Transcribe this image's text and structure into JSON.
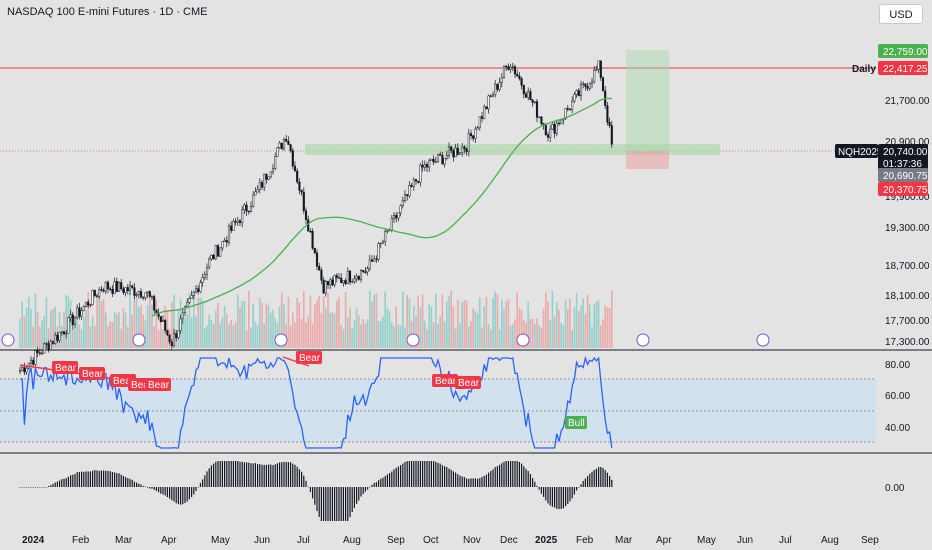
{
  "header": {
    "title": "NASDAQ 100 E-mini Futures · 1D · CME",
    "currency": "USD"
  },
  "price_axis": {
    "labels": [
      "21,700.00",
      "19,300.00",
      "18,700.00",
      "18,100.00",
      "17,700.00",
      "17,300.00"
    ],
    "partial_labels": [
      "20,900.00",
      "19,900.00"
    ],
    "tags": {
      "target": "22,759.00",
      "daily_level": "22,417.25",
      "symbol": "NQH2025",
      "last_price": "20,740.00",
      "countdown": "01:37:36",
      "ma_value": "20,690.75",
      "stop": "20,370.75"
    },
    "daily_label": "Daily"
  },
  "rsi": {
    "axis_labels": [
      "80.00",
      "60.00",
      "40.00"
    ],
    "signals": [
      "Bear",
      "Bear",
      "Bear",
      "Bear",
      "Bear",
      "Bear",
      "Bear",
      "Bear",
      "Bull"
    ]
  },
  "macd": {
    "axis_label": "0.00"
  },
  "time_axis": [
    "2024",
    "Feb",
    "Mar",
    "Apr",
    "May",
    "Jun",
    "Jul",
    "Aug",
    "Sep",
    "Oct",
    "Nov",
    "Dec",
    "2025",
    "Feb",
    "Mar",
    "Apr",
    "May",
    "Jun",
    "Jul",
    "Aug",
    "Sep"
  ],
  "colors": {
    "up": "#131722",
    "down": "#131722",
    "ma": "#4caf50",
    "rsi": "#2962ff",
    "bear": "#f23645",
    "bull": "#4caf50",
    "level": "#f23645"
  },
  "chart_data": {
    "type": "candlestick",
    "title": "NASDAQ 100 E-mini Futures · 1D · CME",
    "symbol": "NQH2025",
    "last": 20740.0,
    "levels": {
      "target": 22759.0,
      "daily": 22417.25,
      "ma": 20690.75,
      "stop": 20370.75
    },
    "yrange": [
      17200,
      23200
    ],
    "anchor_closes": [
      {
        "x": "2024-01-02",
        "y": 16800
      },
      {
        "x": "2024-02-01",
        "y": 17500
      },
      {
        "x": "2024-03-01",
        "y": 18300
      },
      {
        "x": "2024-04-01",
        "y": 18200
      },
      {
        "x": "2024-04-19",
        "y": 17300
      },
      {
        "x": "2024-05-15",
        "y": 18700
      },
      {
        "x": "2024-06-20",
        "y": 20000
      },
      {
        "x": "2024-07-10",
        "y": 21000
      },
      {
        "x": "2024-08-05",
        "y": 18300
      },
      {
        "x": "2024-09-06",
        "y": 18600
      },
      {
        "x": "2024-10-15",
        "y": 20400
      },
      {
        "x": "2024-11-15",
        "y": 20800
      },
      {
        "x": "2024-12-16",
        "y": 22300
      },
      {
        "x": "2025-01-13",
        "y": 21000
      },
      {
        "x": "2025-02-18",
        "y": 22200
      },
      {
        "x": "2025-02-27",
        "y": 20740
      }
    ]
  }
}
